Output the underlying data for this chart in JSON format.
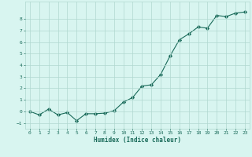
{
  "x": [
    0,
    1,
    2,
    3,
    4,
    5,
    6,
    7,
    8,
    9,
    10,
    11,
    12,
    13,
    14,
    15,
    16,
    17,
    18,
    19,
    20,
    21,
    22,
    23
  ],
  "y": [
    0.0,
    -0.3,
    0.2,
    -0.3,
    -0.1,
    -0.8,
    -0.2,
    -0.2,
    -0.15,
    0.05,
    0.8,
    1.2,
    2.2,
    2.3,
    3.2,
    4.8,
    6.2,
    6.7,
    7.3,
    7.2,
    8.3,
    8.2,
    8.5,
    8.6
  ],
  "line_color": "#1a6b5a",
  "marker": "D",
  "marker_size": 2.2,
  "bg_color": "#d8f5f0",
  "grid_color": "#b0d8d0",
  "xlabel": "Humidex (Indice chaleur)",
  "xlim": [
    -0.5,
    23.5
  ],
  "ylim": [
    -1.5,
    9.5
  ],
  "xticks": [
    0,
    1,
    2,
    3,
    4,
    5,
    6,
    7,
    8,
    9,
    10,
    11,
    12,
    13,
    14,
    15,
    16,
    17,
    18,
    19,
    20,
    21,
    22,
    23
  ],
  "yticks": [
    -1,
    0,
    1,
    2,
    3,
    4,
    5,
    6,
    7,
    8
  ],
  "font_color": "#1a6b5a"
}
